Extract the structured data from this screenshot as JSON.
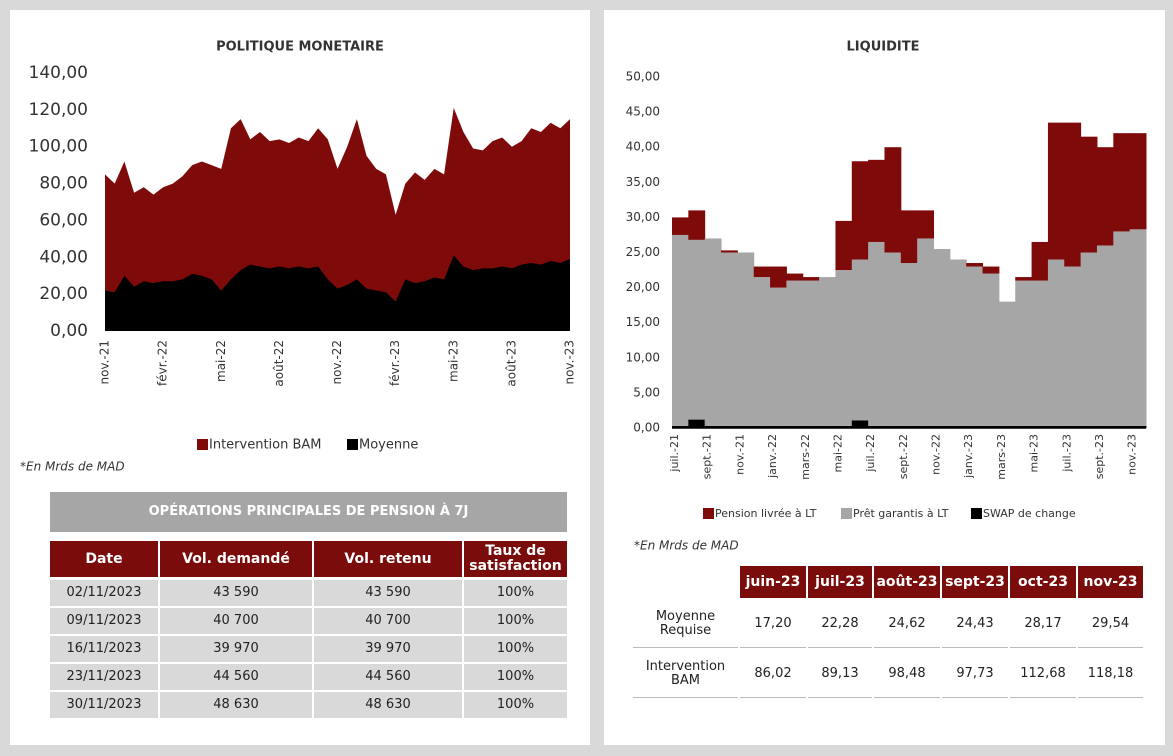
{
  "chart_data": [
    {
      "type": "area",
      "title": "POLITIQUE MONETAIRE",
      "categories": [
        "nov.-21",
        null,
        null,
        null,
        null,
        null,
        "févr.-22",
        null,
        null,
        null,
        null,
        null,
        "mai-22",
        null,
        null,
        null,
        null,
        null,
        "août-22",
        null,
        null,
        null,
        null,
        null,
        "nov.-22",
        null,
        null,
        null,
        null,
        null,
        "févr.-23",
        null,
        null,
        null,
        null,
        null,
        "mai-23",
        null,
        null,
        null,
        null,
        null,
        "août-23",
        null,
        null,
        null,
        null,
        null,
        "nov.-23"
      ],
      "series": [
        {
          "name": "Intervention BAM",
          "color": "#7f0a0a",
          "values": [
            85,
            80,
            92,
            75,
            78,
            74,
            78,
            80,
            84,
            90,
            92,
            90,
            88,
            110,
            115,
            104,
            108,
            103,
            104,
            102,
            105,
            103,
            110,
            104,
            88,
            100,
            115,
            95,
            88,
            85,
            63,
            80,
            86,
            82,
            88,
            85,
            121,
            108,
            99,
            98,
            103,
            105,
            100,
            103,
            110,
            108,
            113,
            110,
            115
          ]
        },
        {
          "name": "Moyenne",
          "color": "#000000",
          "values": [
            22,
            21,
            30,
            24,
            27,
            26,
            27,
            27,
            28,
            31,
            30,
            28,
            22,
            28,
            33,
            36,
            35,
            34,
            35,
            34,
            35,
            34,
            35,
            28,
            23,
            25,
            28,
            23,
            22,
            21,
            16,
            28,
            26,
            27,
            29,
            28,
            41,
            35,
            33,
            34,
            34,
            35,
            34,
            36,
            37,
            36,
            38,
            37,
            39
          ]
        }
      ],
      "ylim": [
        0,
        140
      ],
      "yticks": [
        {
          "value": 0,
          "label": "0,00"
        },
        {
          "value": 20,
          "label": "20,00"
        },
        {
          "value": 40,
          "label": "40,00"
        },
        {
          "value": 60,
          "label": "60,00"
        },
        {
          "value": 80,
          "label": "80,00"
        },
        {
          "value": 100,
          "label": "100,00"
        },
        {
          "value": 120,
          "label": "120,00"
        },
        {
          "value": 140,
          "label": "140,00"
        }
      ],
      "note": "*En Mrds de MAD"
    },
    {
      "type": "area",
      "step": true,
      "stacked": true,
      "title": "LIQUIDITE",
      "categories": [
        "juil.-21",
        null,
        "sept.-21",
        null,
        "nov.-21",
        null,
        "janv.-22",
        null,
        "mars-22",
        null,
        "mai-22",
        null,
        "juil.-22",
        null,
        "sept.-22",
        null,
        "nov.-22",
        null,
        "janv.-23",
        null,
        "mars-23",
        null,
        "mai-23",
        null,
        "juil.-23",
        null,
        "sept.-23",
        null,
        "nov.-23"
      ],
      "series": [
        {
          "name": "Pension livrée à LT",
          "color": "#7f0a0a",
          "values": [
            2.5,
            4.2,
            0,
            0.3,
            0,
            1.5,
            3,
            1,
            0.5,
            0,
            7,
            14,
            11.7,
            15,
            7.5,
            4,
            0,
            0,
            0.5,
            1,
            0,
            0.5,
            5.5,
            19.5,
            20.5,
            16.5,
            14,
            14,
            13.7
          ]
        },
        {
          "name": "Prêt garantis à LT",
          "color": "#a6a6a6",
          "values": [
            27.2,
            25.6,
            26.7,
            24.7,
            24.7,
            21.2,
            19.7,
            20.7,
            20.7,
            21.2,
            22.2,
            22.9,
            26.2,
            24.7,
            23.2,
            26.7,
            25.2,
            23.7,
            22.7,
            21.7,
            17.7,
            20.7,
            20.7,
            23.7,
            22.7,
            24.7,
            25.7,
            27.7,
            28
          ]
        },
        {
          "name": "SWAP de change",
          "color": "#000000",
          "values": [
            0.3,
            1.2,
            0.3,
            0.3,
            0.3,
            0.3,
            0.3,
            0.3,
            0.3,
            0.3,
            0.3,
            1.1,
            0.3,
            0.3,
            0.3,
            0.3,
            0.3,
            0.3,
            0.3,
            0.3,
            0.3,
            0.3,
            0.3,
            0.3,
            0.3,
            0.3,
            0.3,
            0.3,
            0.3
          ]
        }
      ],
      "ylim": [
        0,
        50
      ],
      "yticks": [
        {
          "value": 0,
          "label": "0,00"
        },
        {
          "value": 5,
          "label": "5,00"
        },
        {
          "value": 10,
          "label": "10,00"
        },
        {
          "value": 15,
          "label": "15,00"
        },
        {
          "value": 20,
          "label": "20,00"
        },
        {
          "value": 25,
          "label": "25,00"
        },
        {
          "value": 30,
          "label": "30,00"
        },
        {
          "value": 35,
          "label": "35,00"
        },
        {
          "value": 40,
          "label": "40,00"
        },
        {
          "value": 45,
          "label": "45,00"
        },
        {
          "value": 50,
          "label": "50,00"
        }
      ],
      "note": "*En Mrds de MAD"
    }
  ],
  "pension_table": {
    "title": "OPÉRATIONS PRINCIPALES DE PENSION À 7J",
    "columns": [
      "Date",
      "Vol. demandé",
      "Vol. retenu",
      "Taux de satisfaction"
    ],
    "rows": [
      [
        "02/11/2023",
        "43 590",
        "43 590",
        "100%"
      ],
      [
        "09/11/2023",
        "40 700",
        "40 700",
        "100%"
      ],
      [
        "16/11/2023",
        "39 970",
        "39 970",
        "100%"
      ],
      [
        "23/11/2023",
        "44 560",
        "44 560",
        "100%"
      ],
      [
        "30/11/2023",
        "48 630",
        "48 630",
        "100%"
      ]
    ]
  },
  "liquidity_table": {
    "columns": [
      "juin-23",
      "juil-23",
      "août-23",
      "sept-23",
      "oct-23",
      "nov-23"
    ],
    "rows": [
      {
        "label": "Moyenne Requise",
        "values": [
          "17,20",
          "22,28",
          "24,62",
          "24,43",
          "28,17",
          "29,54"
        ]
      },
      {
        "label": "Intervention BAM",
        "values": [
          "86,02",
          "89,13",
          "98,48",
          "97,73",
          "112,68",
          "118,18"
        ]
      }
    ]
  }
}
